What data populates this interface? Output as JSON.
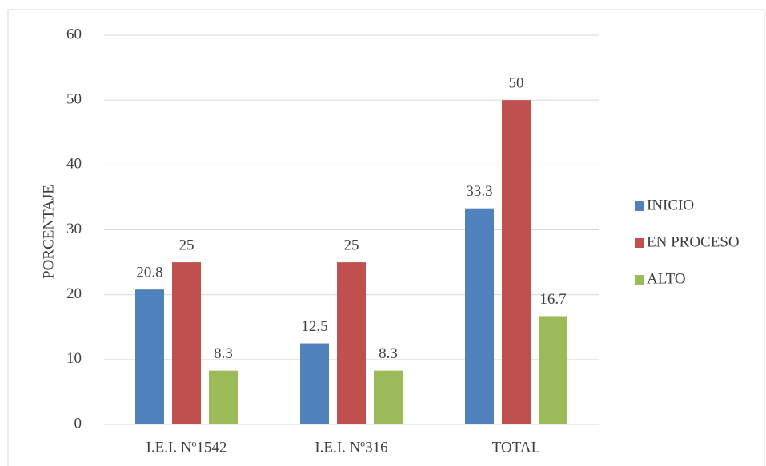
{
  "chart_data": {
    "type": "bar",
    "y_label": "PORCENTAJE",
    "categories": [
      "I.E.I. Nº1542",
      "I.E.I. Nº316",
      "TOTAL"
    ],
    "series": [
      {
        "name": "INICIO",
        "color": "#4f81bd",
        "values": [
          20.8,
          12.5,
          33.3
        ]
      },
      {
        "name": "EN PROCESO",
        "color": "#c0504d",
        "values": [
          25,
          25,
          50
        ]
      },
      {
        "name": "ALTO",
        "color": "#9bbb59",
        "values": [
          8.3,
          8.3,
          16.7
        ]
      }
    ],
    "ylim": [
      0,
      60
    ],
    "yticks": [
      0,
      10,
      20,
      30,
      40,
      50,
      60
    ],
    "grid": true,
    "legend": "right"
  }
}
